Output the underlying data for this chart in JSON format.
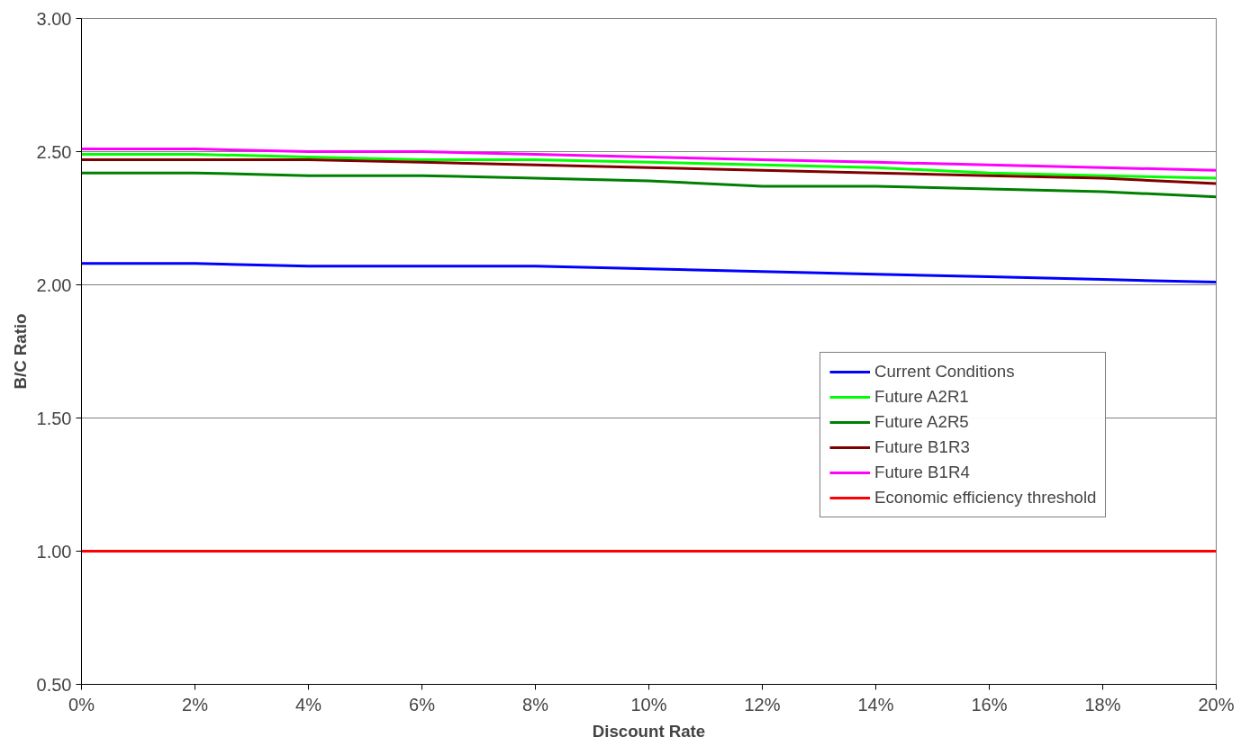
{
  "chart_data": {
    "type": "line",
    "xlabel": "Discount Rate",
    "ylabel": "B/C Ratio",
    "x": [
      0,
      2,
      4,
      6,
      8,
      10,
      12,
      14,
      16,
      18,
      20
    ],
    "xlim": [
      0,
      20
    ],
    "xticks": [
      {
        "value": 0,
        "label": "0%"
      },
      {
        "value": 2,
        "label": "2%"
      },
      {
        "value": 4,
        "label": "4%"
      },
      {
        "value": 6,
        "label": "6%"
      },
      {
        "value": 8,
        "label": "8%"
      },
      {
        "value": 10,
        "label": "10%"
      },
      {
        "value": 12,
        "label": "12%"
      },
      {
        "value": 14,
        "label": "14%"
      },
      {
        "value": 16,
        "label": "16%"
      },
      {
        "value": 18,
        "label": "18%"
      },
      {
        "value": 20,
        "label": "20%"
      }
    ],
    "ylim": [
      0.5,
      3.0
    ],
    "yticks": [
      {
        "value": 0.5,
        "label": "0.50"
      },
      {
        "value": 1.0,
        "label": "1.00"
      },
      {
        "value": 1.5,
        "label": "1.50"
      },
      {
        "value": 2.0,
        "label": "2.00"
      },
      {
        "value": 2.5,
        "label": "2.50"
      },
      {
        "value": 3.0,
        "label": "3.00"
      }
    ],
    "grid": "y",
    "legend": "bottom right",
    "marker": "none",
    "line_style": "solid",
    "series": [
      {
        "name": "Current Conditions",
        "color": "#0000ff",
        "values": [
          2.08,
          2.08,
          2.07,
          2.07,
          2.07,
          2.06,
          2.05,
          2.04,
          2.03,
          2.02,
          2.01
        ]
      },
      {
        "name": "Future A2R1",
        "color": "#00ff00",
        "values": [
          2.49,
          2.49,
          2.48,
          2.47,
          2.47,
          2.46,
          2.45,
          2.44,
          2.42,
          2.41,
          2.4
        ]
      },
      {
        "name": "Future A2R5",
        "color": "#008000",
        "values": [
          2.42,
          2.42,
          2.41,
          2.41,
          2.4,
          2.39,
          2.37,
          2.37,
          2.36,
          2.35,
          2.33
        ]
      },
      {
        "name": "Future B1R3",
        "color": "#800000",
        "values": [
          2.47,
          2.47,
          2.47,
          2.46,
          2.45,
          2.44,
          2.43,
          2.42,
          2.41,
          2.4,
          2.38
        ]
      },
      {
        "name": "Future B1R4",
        "color": "#ff00ff",
        "values": [
          2.51,
          2.51,
          2.5,
          2.5,
          2.49,
          2.48,
          2.47,
          2.46,
          2.45,
          2.44,
          2.43
        ]
      },
      {
        "name": "Economic efficiency threshold",
        "color": "#ff0000",
        "values": [
          1.0,
          1.0,
          1.0,
          1.0,
          1.0,
          1.0,
          1.0,
          1.0,
          1.0,
          1.0,
          1.0
        ]
      }
    ]
  }
}
